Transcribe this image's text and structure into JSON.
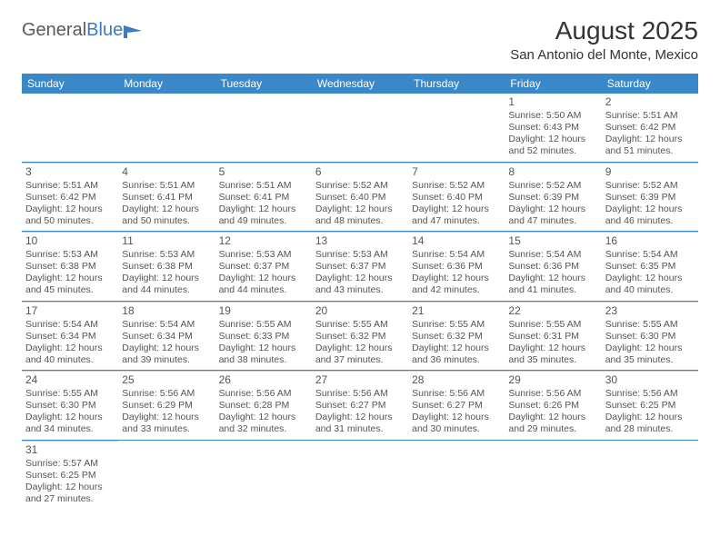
{
  "logo": {
    "textA": "General",
    "textB": "Blue"
  },
  "title": "August 2025",
  "location": "San Antonio del Monte, Mexico",
  "colors": {
    "header_bg": "#3b88c9",
    "header_text": "#ffffff",
    "divider": "#3b88c9",
    "cell_divider": "#cfcfcf",
    "body_text": "#555555",
    "title_text": "#333333"
  },
  "dayHeaders": [
    "Sunday",
    "Monday",
    "Tuesday",
    "Wednesday",
    "Thursday",
    "Friday",
    "Saturday"
  ],
  "weeks": [
    [
      {
        "blank": true
      },
      {
        "blank": true
      },
      {
        "blank": true
      },
      {
        "blank": true
      },
      {
        "blank": true
      },
      {
        "day": "1",
        "sunrise": "Sunrise: 5:50 AM",
        "sunset": "Sunset: 6:43 PM",
        "daylight": "Daylight: 12 hours and 52 minutes."
      },
      {
        "day": "2",
        "sunrise": "Sunrise: 5:51 AM",
        "sunset": "Sunset: 6:42 PM",
        "daylight": "Daylight: 12 hours and 51 minutes."
      }
    ],
    [
      {
        "day": "3",
        "sunrise": "Sunrise: 5:51 AM",
        "sunset": "Sunset: 6:42 PM",
        "daylight": "Daylight: 12 hours and 50 minutes."
      },
      {
        "day": "4",
        "sunrise": "Sunrise: 5:51 AM",
        "sunset": "Sunset: 6:41 PM",
        "daylight": "Daylight: 12 hours and 50 minutes."
      },
      {
        "day": "5",
        "sunrise": "Sunrise: 5:51 AM",
        "sunset": "Sunset: 6:41 PM",
        "daylight": "Daylight: 12 hours and 49 minutes."
      },
      {
        "day": "6",
        "sunrise": "Sunrise: 5:52 AM",
        "sunset": "Sunset: 6:40 PM",
        "daylight": "Daylight: 12 hours and 48 minutes."
      },
      {
        "day": "7",
        "sunrise": "Sunrise: 5:52 AM",
        "sunset": "Sunset: 6:40 PM",
        "daylight": "Daylight: 12 hours and 47 minutes."
      },
      {
        "day": "8",
        "sunrise": "Sunrise: 5:52 AM",
        "sunset": "Sunset: 6:39 PM",
        "daylight": "Daylight: 12 hours and 47 minutes."
      },
      {
        "day": "9",
        "sunrise": "Sunrise: 5:52 AM",
        "sunset": "Sunset: 6:39 PM",
        "daylight": "Daylight: 12 hours and 46 minutes."
      }
    ],
    [
      {
        "day": "10",
        "sunrise": "Sunrise: 5:53 AM",
        "sunset": "Sunset: 6:38 PM",
        "daylight": "Daylight: 12 hours and 45 minutes."
      },
      {
        "day": "11",
        "sunrise": "Sunrise: 5:53 AM",
        "sunset": "Sunset: 6:38 PM",
        "daylight": "Daylight: 12 hours and 44 minutes."
      },
      {
        "day": "12",
        "sunrise": "Sunrise: 5:53 AM",
        "sunset": "Sunset: 6:37 PM",
        "daylight": "Daylight: 12 hours and 44 minutes."
      },
      {
        "day": "13",
        "sunrise": "Sunrise: 5:53 AM",
        "sunset": "Sunset: 6:37 PM",
        "daylight": "Daylight: 12 hours and 43 minutes."
      },
      {
        "day": "14",
        "sunrise": "Sunrise: 5:54 AM",
        "sunset": "Sunset: 6:36 PM",
        "daylight": "Daylight: 12 hours and 42 minutes."
      },
      {
        "day": "15",
        "sunrise": "Sunrise: 5:54 AM",
        "sunset": "Sunset: 6:36 PM",
        "daylight": "Daylight: 12 hours and 41 minutes."
      },
      {
        "day": "16",
        "sunrise": "Sunrise: 5:54 AM",
        "sunset": "Sunset: 6:35 PM",
        "daylight": "Daylight: 12 hours and 40 minutes."
      }
    ],
    [
      {
        "day": "17",
        "sunrise": "Sunrise: 5:54 AM",
        "sunset": "Sunset: 6:34 PM",
        "daylight": "Daylight: 12 hours and 40 minutes."
      },
      {
        "day": "18",
        "sunrise": "Sunrise: 5:54 AM",
        "sunset": "Sunset: 6:34 PM",
        "daylight": "Daylight: 12 hours and 39 minutes."
      },
      {
        "day": "19",
        "sunrise": "Sunrise: 5:55 AM",
        "sunset": "Sunset: 6:33 PM",
        "daylight": "Daylight: 12 hours and 38 minutes."
      },
      {
        "day": "20",
        "sunrise": "Sunrise: 5:55 AM",
        "sunset": "Sunset: 6:32 PM",
        "daylight": "Daylight: 12 hours and 37 minutes."
      },
      {
        "day": "21",
        "sunrise": "Sunrise: 5:55 AM",
        "sunset": "Sunset: 6:32 PM",
        "daylight": "Daylight: 12 hours and 36 minutes."
      },
      {
        "day": "22",
        "sunrise": "Sunrise: 5:55 AM",
        "sunset": "Sunset: 6:31 PM",
        "daylight": "Daylight: 12 hours and 35 minutes."
      },
      {
        "day": "23",
        "sunrise": "Sunrise: 5:55 AM",
        "sunset": "Sunset: 6:30 PM",
        "daylight": "Daylight: 12 hours and 35 minutes."
      }
    ],
    [
      {
        "day": "24",
        "sunrise": "Sunrise: 5:55 AM",
        "sunset": "Sunset: 6:30 PM",
        "daylight": "Daylight: 12 hours and 34 minutes."
      },
      {
        "day": "25",
        "sunrise": "Sunrise: 5:56 AM",
        "sunset": "Sunset: 6:29 PM",
        "daylight": "Daylight: 12 hours and 33 minutes."
      },
      {
        "day": "26",
        "sunrise": "Sunrise: 5:56 AM",
        "sunset": "Sunset: 6:28 PM",
        "daylight": "Daylight: 12 hours and 32 minutes."
      },
      {
        "day": "27",
        "sunrise": "Sunrise: 5:56 AM",
        "sunset": "Sunset: 6:27 PM",
        "daylight": "Daylight: 12 hours and 31 minutes."
      },
      {
        "day": "28",
        "sunrise": "Sunrise: 5:56 AM",
        "sunset": "Sunset: 6:27 PM",
        "daylight": "Daylight: 12 hours and 30 minutes."
      },
      {
        "day": "29",
        "sunrise": "Sunrise: 5:56 AM",
        "sunset": "Sunset: 6:26 PM",
        "daylight": "Daylight: 12 hours and 29 minutes."
      },
      {
        "day": "30",
        "sunrise": "Sunrise: 5:56 AM",
        "sunset": "Sunset: 6:25 PM",
        "daylight": "Daylight: 12 hours and 28 minutes."
      }
    ],
    [
      {
        "day": "31",
        "sunrise": "Sunrise: 5:57 AM",
        "sunset": "Sunset: 6:25 PM",
        "daylight": "Daylight: 12 hours and 27 minutes."
      },
      {
        "blank": true
      },
      {
        "blank": true
      },
      {
        "blank": true
      },
      {
        "blank": true
      },
      {
        "blank": true
      },
      {
        "blank": true
      }
    ]
  ]
}
